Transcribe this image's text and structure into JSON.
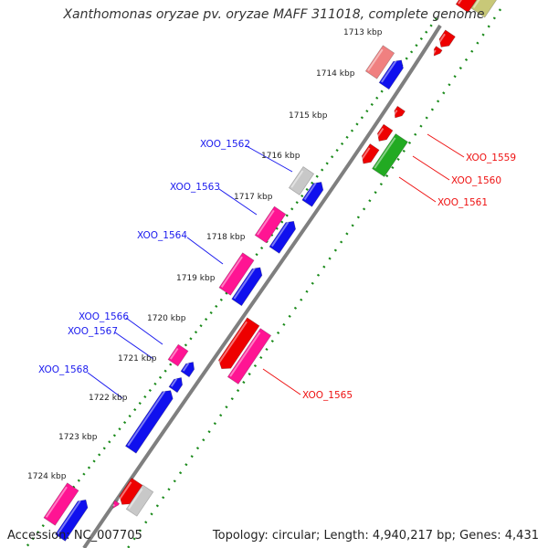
{
  "title": "Xanthomonas oryzae pv. oryzae MAFF 311018, complete genome",
  "footer": {
    "accession": "Accession: NC_007705",
    "topology": "Topology: circular; Length: 4,940,217 bp; Genes: 4,431"
  },
  "colors": {
    "backbone": "#7f7f7f",
    "tick_ring": "#1a8a1a",
    "forward_label": "#1a1aee",
    "reverse_label": "#ee1111",
    "gene_blue": "#1010ee",
    "gene_red": "#ee0000",
    "gene_pink": "#ff1493",
    "gene_salmon": "#f08080",
    "gene_gray": "#c8c8c8",
    "gene_green": "#22aa22",
    "gene_olive": "#c8c878"
  },
  "scale_labels": [
    {
      "text": "1713 kbp",
      "kbp": 1713
    },
    {
      "text": "1714 kbp",
      "kbp": 1714
    },
    {
      "text": "1715 kbp",
      "kbp": 1715
    },
    {
      "text": "1716 kbp",
      "kbp": 1716
    },
    {
      "text": "1717 kbp",
      "kbp": 1717
    },
    {
      "text": "1718 kbp",
      "kbp": 1718
    },
    {
      "text": "1719 kbp",
      "kbp": 1719
    },
    {
      "text": "1720 kbp",
      "kbp": 1720
    },
    {
      "text": "1721 kbp",
      "kbp": 1721
    },
    {
      "text": "1722 kbp",
      "kbp": 1722
    },
    {
      "text": "1723 kbp",
      "kbp": 1723
    },
    {
      "text": "1724 kbp",
      "kbp": 1724
    }
  ],
  "gene_labels": [
    {
      "text": "XOO_1559",
      "strand": "reverse"
    },
    {
      "text": "XOO_1560",
      "strand": "reverse"
    },
    {
      "text": "XOO_1561",
      "strand": "reverse"
    },
    {
      "text": "XOO_1562",
      "strand": "forward"
    },
    {
      "text": "XOO_1563",
      "strand": "forward"
    },
    {
      "text": "XOO_1564",
      "strand": "forward"
    },
    {
      "text": "XOO_1565",
      "strand": "reverse"
    },
    {
      "text": "XOO_1566",
      "strand": "forward"
    },
    {
      "text": "XOO_1567",
      "strand": "forward"
    },
    {
      "text": "XOO_1568",
      "strand": "forward"
    }
  ]
}
